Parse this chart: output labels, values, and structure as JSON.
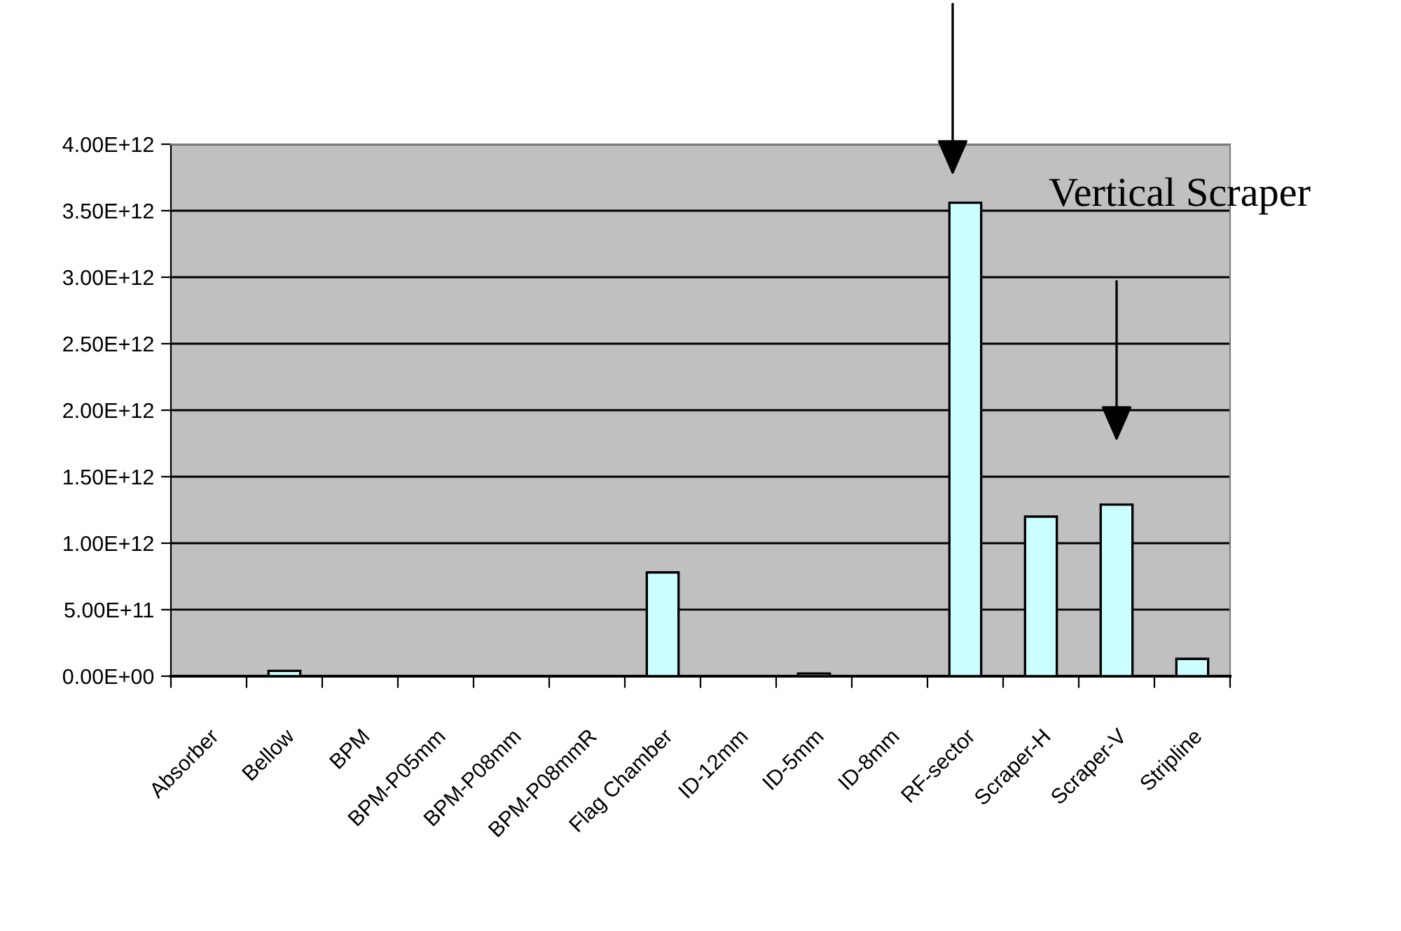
{
  "chart_data": {
    "type": "bar",
    "categories": [
      "Absorber",
      "Bellow",
      "BPM",
      "BPM-P05mm",
      "BPM-P08mm",
      "BPM-P08mmR",
      "Flag Chamber",
      "ID-12mm",
      "ID-5mm",
      "ID-8mm",
      "RF-sector",
      "Scraper-H",
      "Scraper-V",
      "Stripline"
    ],
    "values": [
      0,
      40000000000.0,
      0,
      0,
      0,
      0,
      780000000000.0,
      0,
      20000000000.0,
      0,
      3560000000000.0,
      1200000000000.0,
      1290000000000.0,
      130000000000.0
    ],
    "color": "#ccffff",
    "ylim": [
      0,
      4000000000000.0
    ],
    "yticks": [
      {
        "value": 0,
        "label": "0.00E+00"
      },
      {
        "value": 500000000000.0,
        "label": "5.00E+11"
      },
      {
        "value": 1000000000000.0,
        "label": "1.00E+12"
      },
      {
        "value": 1500000000000.0,
        "label": "1.50E+12"
      },
      {
        "value": 2000000000000.0,
        "label": "2.00E+12"
      },
      {
        "value": 2500000000000.0,
        "label": "2.50E+12"
      },
      {
        "value": 3000000000000.0,
        "label": "3.00E+12"
      },
      {
        "value": 3500000000000.0,
        "label": "3.50E+12"
      },
      {
        "value": 4000000000000.0,
        "label": "4.00E+12"
      }
    ],
    "grid": "y",
    "annotations": [
      "Vertical Scraper"
    ]
  }
}
